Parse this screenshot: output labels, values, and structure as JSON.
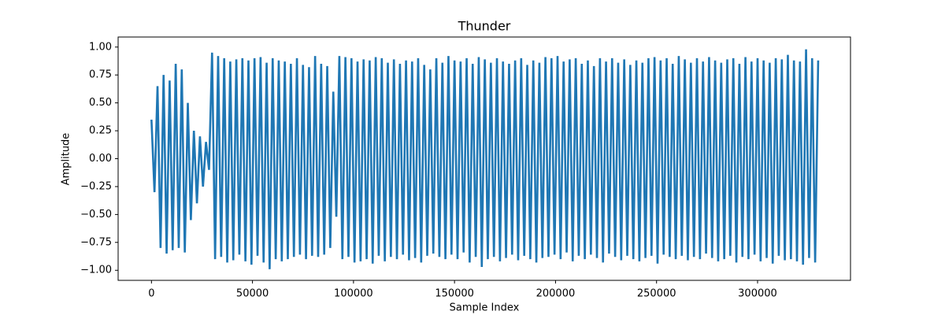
{
  "chart_data": {
    "type": "line",
    "title": "Thunder",
    "xlabel": "Sample Index",
    "ylabel": "Amplitude",
    "color": "#1f77b4",
    "grid": false,
    "xlim": [
      -16500,
      346000
    ],
    "xticks": [
      0,
      50000,
      100000,
      150000,
      200000,
      250000,
      300000
    ],
    "ylim": [
      -1.09,
      1.09
    ],
    "yticks": [
      {
        "value": -1,
        "label": "−1.00"
      },
      {
        "value": -0.75,
        "label": "−0.75"
      },
      {
        "value": -0.5,
        "label": "−0.50"
      },
      {
        "value": -0.25,
        "label": "−0.25"
      },
      {
        "value": 0,
        "label": "0.00"
      },
      {
        "value": 0.25,
        "label": "0.25"
      },
      {
        "value": 0.5,
        "label": "0.50"
      },
      {
        "value": 0.75,
        "label": "0.75"
      },
      {
        "value": 1,
        "label": "1.00"
      }
    ],
    "x": [
      0,
      1500,
      3000,
      4500,
      6000,
      7500,
      9000,
      10500,
      12000,
      13500,
      15000,
      16500,
      18000,
      19500,
      21000,
      22500,
      24000,
      25500,
      27000,
      28500,
      30000,
      31500,
      33000,
      34500,
      36000,
      37500,
      39000,
      40500,
      42000,
      43500,
      45000,
      46500,
      48000,
      49500,
      51000,
      52500,
      54000,
      55500,
      57000,
      58500,
      60000,
      61500,
      63000,
      64500,
      66000,
      67500,
      69000,
      70500,
      72000,
      73500,
      75000,
      76500,
      78000,
      79500,
      81000,
      82500,
      84000,
      85500,
      87000,
      88500,
      90000,
      91500,
      93000,
      94500,
      96000,
      97500,
      99000,
      100500,
      102000,
      103500,
      105000,
      106500,
      108000,
      109500,
      111000,
      112500,
      114000,
      115500,
      117000,
      118500,
      120000,
      121500,
      123000,
      124500,
      126000,
      127500,
      129000,
      130500,
      132000,
      133500,
      135000,
      136500,
      138000,
      139500,
      141000,
      142500,
      144000,
      145500,
      147000,
      148500,
      150000,
      151500,
      153000,
      154500,
      156000,
      157500,
      159000,
      160500,
      162000,
      163500,
      165000,
      166500,
      168000,
      169500,
      171000,
      172500,
      174000,
      175500,
      177000,
      178500,
      180000,
      181500,
      183000,
      184500,
      186000,
      187500,
      189000,
      190500,
      192000,
      193500,
      195000,
      196500,
      198000,
      199500,
      201000,
      202500,
      204000,
      205500,
      207000,
      208500,
      210000,
      211500,
      213000,
      214500,
      216000,
      217500,
      219000,
      220500,
      222000,
      223500,
      225000,
      226500,
      228000,
      229500,
      231000,
      232500,
      234000,
      235500,
      237000,
      238500,
      240000,
      241500,
      243000,
      244500,
      246000,
      247500,
      249000,
      250500,
      252000,
      253500,
      255000,
      256500,
      258000,
      259500,
      261000,
      262500,
      264000,
      265500,
      267000,
      268500,
      270000,
      271500,
      273000,
      274500,
      276000,
      277500,
      279000,
      280500,
      282000,
      283500,
      285000,
      286500,
      288000,
      289500,
      291000,
      292500,
      294000,
      295500,
      297000,
      298500,
      300000,
      301500,
      303000,
      304500,
      306000,
      307500,
      309000,
      310500,
      312000,
      313500,
      315000,
      316500,
      318000,
      319500,
      321000,
      322500,
      324000,
      325500,
      327000,
      328500,
      330000
    ],
    "values": [
      0.35,
      -0.3,
      0.65,
      -0.8,
      0.75,
      -0.85,
      0.7,
      -0.82,
      0.85,
      -0.8,
      0.8,
      -0.84,
      0.5,
      -0.55,
      0.25,
      -0.4,
      0.2,
      -0.25,
      0.15,
      -0.1,
      0.95,
      -0.9,
      0.92,
      -0.88,
      0.9,
      -0.93,
      0.87,
      -0.91,
      0.89,
      -0.86,
      0.9,
      -0.92,
      0.88,
      -0.95,
      0.9,
      -0.87,
      0.91,
      -0.93,
      0.86,
      -0.99,
      0.9,
      -0.9,
      0.88,
      -0.92,
      0.87,
      -0.9,
      0.85,
      -0.88,
      0.9,
      -0.86,
      0.84,
      -0.9,
      0.82,
      -0.87,
      0.92,
      -0.88,
      0.85,
      -0.86,
      0.83,
      -0.8,
      0.6,
      -0.52,
      0.92,
      -0.9,
      0.91,
      -0.88,
      0.9,
      -0.93,
      0.87,
      -0.92,
      0.89,
      -0.9,
      0.88,
      -0.94,
      0.91,
      -0.87,
      0.9,
      -0.92,
      0.86,
      -0.88,
      0.89,
      -0.9,
      0.85,
      -0.86,
      0.88,
      -0.91,
      0.87,
      -0.89,
      0.9,
      -0.93,
      0.84,
      -0.87,
      0.8,
      -0.85,
      0.9,
      -0.88,
      0.86,
      -0.9,
      0.92,
      -0.86,
      0.88,
      -0.9,
      0.87,
      -0.84,
      0.9,
      -0.93,
      0.85,
      -0.88,
      0.91,
      -0.97,
      0.89,
      -0.9,
      0.86,
      -0.88,
      0.9,
      -0.92,
      0.87,
      -0.89,
      0.85,
      -0.86,
      0.88,
      -0.91,
      0.9,
      -0.87,
      0.84,
      -0.9,
      0.88,
      -0.93,
      0.86,
      -0.89,
      0.91,
      -0.88,
      0.9,
      -0.86,
      0.92,
      -0.9,
      0.87,
      -0.84,
      0.89,
      -0.92,
      0.9,
      -0.87,
      0.85,
      -0.9,
      0.88,
      -0.86,
      0.83,
      -0.89,
      0.9,
      -0.93,
      0.87,
      -0.85,
      0.9,
      -0.88,
      0.86,
      -0.91,
      0.89,
      -0.87,
      0.84,
      -0.9,
      0.88,
      -0.92,
      0.86,
      -0.89,
      0.9,
      -0.87,
      0.91,
      -0.94,
      0.88,
      -0.86,
      0.9,
      -0.88,
      0.85,
      -0.9,
      0.92,
      -0.87,
      0.89,
      -0.91,
      0.86,
      -0.88,
      0.9,
      -0.9,
      0.87,
      -0.85,
      0.91,
      -0.89,
      0.88,
      -0.92,
      0.86,
      -0.9,
      0.89,
      -0.87,
      0.9,
      -0.93,
      0.85,
      -0.88,
      0.91,
      -0.9,
      0.87,
      -0.86,
      0.9,
      -0.92,
      0.88,
      -0.89,
      0.86,
      -0.94,
      0.9,
      -0.87,
      0.89,
      -0.91,
      0.93,
      -0.9,
      0.88,
      -0.92,
      0.87,
      -0.95,
      0.98,
      -0.89,
      0.9,
      -0.93,
      0.88
    ]
  }
}
